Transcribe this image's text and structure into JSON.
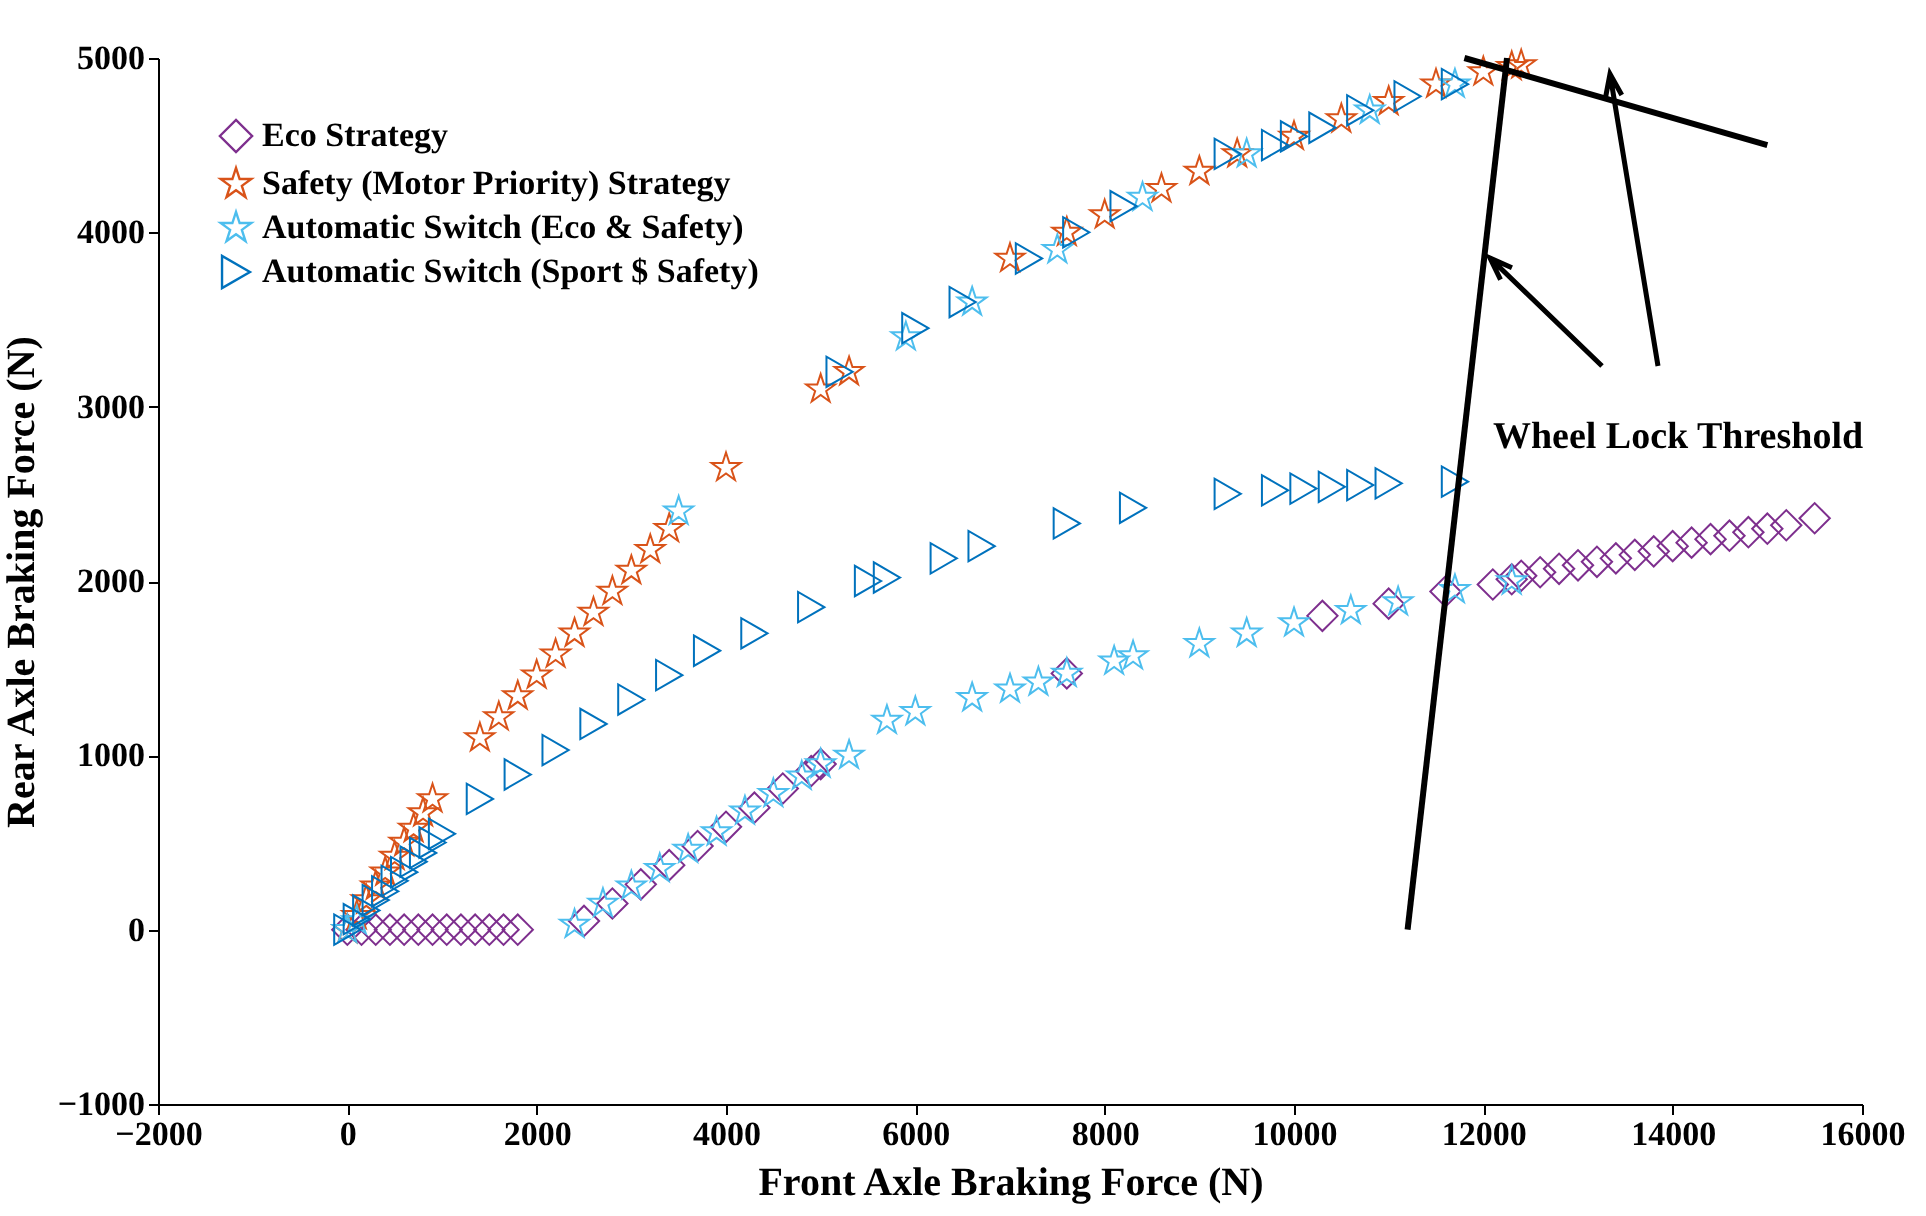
{
  "chart_data": {
    "type": "scatter",
    "xlabel": "Front Axle Braking Force (N)",
    "ylabel": "Rear Axle Braking Force (N)",
    "xlim": [
      -2000,
      16000
    ],
    "xticks": [
      -2000,
      0,
      2000,
      4000,
      6000,
      8000,
      10000,
      12000,
      14000,
      16000
    ],
    "ylim": [
      -1000,
      5000
    ],
    "yticks": [
      -1000,
      0,
      1000,
      2000,
      3000,
      4000,
      5000
    ],
    "grid": false,
    "legend": "top left",
    "annotations": [
      "Wheel Lock Threshold"
    ],
    "series": [
      {
        "name": "Eco Strategy",
        "color": "#7e2f8e",
        "marker": "diamond",
        "x": [
          0,
          150,
          300,
          450,
          600,
          750,
          900,
          1050,
          1200,
          1350,
          1500,
          1650,
          1800,
          2500,
          2800,
          3100,
          3400,
          3700,
          4000,
          4300,
          4600,
          4900,
          5000,
          7600,
          10300,
          11000,
          11600,
          12100,
          12300,
          12400,
          12600,
          12800,
          13000,
          13200,
          13400,
          13600,
          13800,
          14000,
          14200,
          14400,
          14600,
          14800,
          15000,
          15200,
          15500
        ],
        "values": [
          0,
          0,
          0,
          0,
          0,
          0,
          0,
          0,
          0,
          0,
          0,
          0,
          0,
          50,
          150,
          260,
          370,
          480,
          590,
          700,
          810,
          910,
          950,
          1470,
          1800,
          1870,
          1940,
          1980,
          2010,
          2030,
          2050,
          2070,
          2090,
          2110,
          2130,
          2150,
          2170,
          2200,
          2220,
          2240,
          2260,
          2280,
          2300,
          2320,
          2360
        ]
      },
      {
        "name": "Safety (Motor Priority) Strategy",
        "color": "#d95319",
        "marker": "star",
        "x": [
          0,
          100,
          200,
          300,
          400,
          500,
          600,
          700,
          800,
          900,
          1400,
          1600,
          1800,
          2000,
          2200,
          2400,
          2600,
          2800,
          3000,
          3200,
          3400,
          4000,
          5000,
          5300,
          7000,
          7600,
          8000,
          8600,
          9000,
          9400,
          10000,
          10500,
          11000,
          11500,
          12000,
          12300,
          12400
        ],
        "values": [
          0,
          80,
          170,
          250,
          330,
          420,
          500,
          580,
          670,
          750,
          1100,
          1220,
          1340,
          1460,
          1580,
          1700,
          1820,
          1940,
          2060,
          2180,
          2300,
          2650,
          3100,
          3200,
          3850,
          4000,
          4100,
          4250,
          4350,
          4450,
          4550,
          4650,
          4750,
          4850,
          4920,
          4950,
          4960
        ]
      },
      {
        "name": "Automatic Switch (Eco & Safety)",
        "color": "#4dbeee",
        "marker": "star",
        "x": [
          0,
          100,
          2400,
          2700,
          3000,
          3300,
          3600,
          3900,
          4200,
          4500,
          4800,
          5000,
          5300,
          5700,
          6000,
          6600,
          7000,
          7300,
          7600,
          8100,
          8300,
          9000,
          9500,
          10000,
          10600,
          11100,
          11700,
          12300,
          3500,
          5900,
          6600,
          7500,
          8400,
          9500,
          10800,
          11700
        ],
        "values": [
          0,
          50,
          30,
          150,
          250,
          350,
          460,
          560,
          680,
          780,
          880,
          950,
          1000,
          1200,
          1250,
          1330,
          1380,
          1420,
          1470,
          1540,
          1570,
          1640,
          1700,
          1760,
          1830,
          1880,
          1950,
          2000,
          2400,
          3400,
          3600,
          3900,
          4200,
          4450,
          4700,
          4850
        ]
      },
      {
        "name": "Automatic Switch (Sport $ Safety)",
        "color": "#0072bd",
        "marker": "triangle",
        "x": [
          0,
          100,
          200,
          300,
          400,
          500,
          600,
          700,
          800,
          900,
          1000,
          1400,
          1800,
          2200,
          2600,
          3000,
          3400,
          3800,
          4300,
          4900,
          5500,
          5700,
          6300,
          6700,
          7600,
          8300,
          9300,
          9800,
          10100,
          10400,
          10700,
          11000,
          11700,
          5200,
          6000,
          6500,
          7200,
          7700,
          8200,
          9300,
          9800,
          10000,
          10300,
          10700,
          11200,
          11700
        ],
        "values": [
          0,
          60,
          110,
          170,
          220,
          280,
          330,
          390,
          440,
          500,
          550,
          750,
          890,
          1030,
          1180,
          1320,
          1460,
          1600,
          1700,
          1850,
          2000,
          2020,
          2130,
          2200,
          2330,
          2420,
          2500,
          2520,
          2530,
          2540,
          2550,
          2560,
          2570,
          3200,
          3450,
          3600,
          3850,
          4000,
          4150,
          4450,
          4500,
          4550,
          4600,
          4700,
          4780,
          4850
        ]
      },
      {
        "type": "line",
        "color": "#000000",
        "x": [
          11200,
          12250
        ],
        "values": [
          0,
          5000
        ]
      },
      {
        "type": "line",
        "color": "#000000",
        "x": [
          11800,
          15000
        ],
        "values": [
          5000,
          4500
        ]
      }
    ]
  }
}
